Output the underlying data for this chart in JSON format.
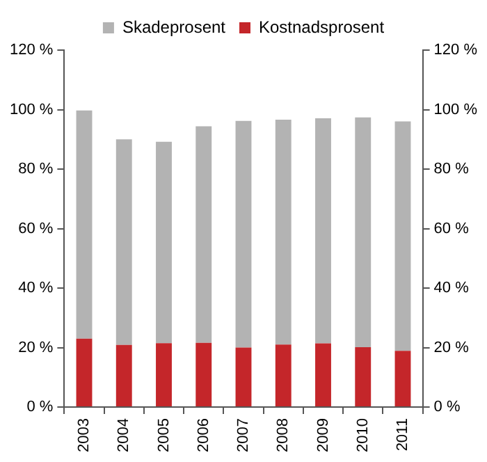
{
  "chart_data": {
    "type": "bar",
    "stacked": true,
    "categories": [
      "2003",
      "2004",
      "2005",
      "2006",
      "2007",
      "2008",
      "2009",
      "2010",
      "2011"
    ],
    "series": [
      {
        "name": "Kostnadsprosent",
        "color": "#c4262a",
        "values": [
          23.0,
          20.9,
          21.5,
          21.6,
          20.0,
          21.0,
          21.4,
          20.1,
          18.9
        ]
      },
      {
        "name": "Skadeprosent",
        "color": "#b3b3b3",
        "values": [
          76.7,
          69.1,
          67.7,
          72.8,
          76.2,
          75.6,
          75.7,
          77.3,
          77.1
        ]
      }
    ],
    "ylim": [
      0,
      120
    ],
    "yticks": [
      {
        "value": 0,
        "label": "0 %"
      },
      {
        "value": 20,
        "label": "20 %"
      },
      {
        "value": 40,
        "label": "40 %"
      },
      {
        "value": 60,
        "label": "60 %"
      },
      {
        "value": 80,
        "label": "80 %"
      },
      {
        "value": 100,
        "label": "100 %"
      },
      {
        "value": 120,
        "label": "120 %"
      }
    ],
    "y2lim": [
      0,
      120
    ],
    "y2ticks": [
      {
        "value": 0,
        "label": "0 %"
      },
      {
        "value": 20,
        "label": "20 %"
      },
      {
        "value": 40,
        "label": "40 %"
      },
      {
        "value": 60,
        "label": "60 %"
      },
      {
        "value": 80,
        "label": "80 %"
      },
      {
        "value": 100,
        "label": "100 %"
      },
      {
        "value": 120,
        "label": "120 %"
      }
    ],
    "grid": false,
    "legend": "top"
  }
}
